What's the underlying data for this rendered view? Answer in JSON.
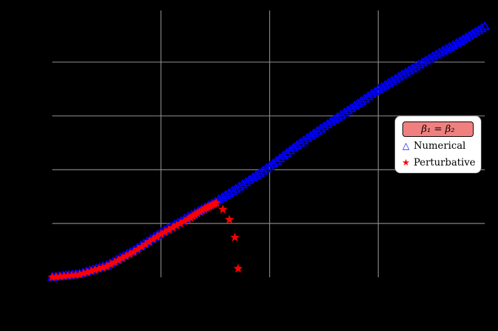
{
  "chart_data": {
    "type": "scatter",
    "title": "",
    "xlabel": "",
    "ylabel": "",
    "xlim": [
      0,
      3.98
    ],
    "ylim": [
      0,
      4.96
    ],
    "grid": true,
    "x_gridlines": [
      1,
      2,
      3
    ],
    "y_gridlines": [
      1,
      2,
      3,
      4
    ],
    "legend_position": "center right",
    "legend_title": "β₁ = β₂",
    "series": [
      {
        "name": "Numerical",
        "marker": "triangle-open",
        "color": "#0000ff",
        "x": [
          0,
          0.25,
          0.5,
          0.75,
          1.0,
          1.25,
          1.5,
          1.75,
          2.0,
          2.25,
          2.5,
          2.75,
          3.0,
          3.25,
          3.5,
          3.75,
          3.98
        ],
        "y": [
          0,
          0.06,
          0.22,
          0.5,
          0.83,
          1.12,
          1.4,
          1.72,
          2.06,
          2.45,
          2.8,
          3.14,
          3.49,
          3.8,
          4.1,
          4.38,
          4.66
        ]
      },
      {
        "name": "Perturbative",
        "marker": "star",
        "color": "#ff0000",
        "x": [
          0,
          0.25,
          0.5,
          0.75,
          1.0,
          1.25,
          1.4,
          1.51,
          1.57,
          1.63,
          1.68,
          1.71
        ],
        "y": [
          0,
          0.05,
          0.2,
          0.47,
          0.8,
          1.08,
          1.27,
          1.38,
          1.26,
          1.07,
          0.74,
          0.16
        ]
      }
    ]
  },
  "legend": {
    "title": "β₁ = β₂",
    "items": [
      {
        "label": "Numerical",
        "marker": "△"
      },
      {
        "label": "Perturbative",
        "marker": "★"
      }
    ]
  }
}
